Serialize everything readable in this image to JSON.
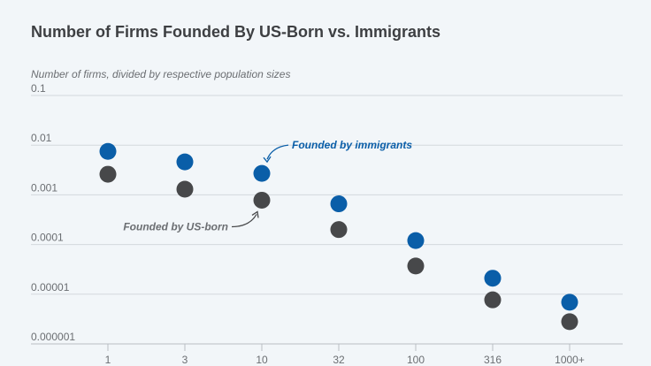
{
  "chart_data": {
    "type": "scatter",
    "title": "Number of Firms Founded By US-Born vs. Immigrants",
    "ylabel": "Number of firms, divided by respective population sizes",
    "xlabel": "",
    "y_scale": "log",
    "ylim": [
      1e-06,
      0.1
    ],
    "y_ticks": [
      "0.1",
      "0.01",
      "0.001",
      "0.0001",
      "0.00001",
      "0.000001"
    ],
    "y_tick_values": [
      0.1,
      0.01,
      0.001,
      0.0001,
      1e-05,
      1e-06
    ],
    "categories": [
      "1",
      "3",
      "10",
      "32",
      "100",
      "316",
      "1000+"
    ],
    "grid": true,
    "series": [
      {
        "name": "Founded by immigrants",
        "color": "#0a5ea8",
        "values": [
          0.0075,
          0.0046,
          0.0027,
          0.00066,
          0.00012,
          2.1e-05,
          6.9e-06
        ]
      },
      {
        "name": "Founded by US-born",
        "color": "#47484a",
        "values": [
          0.0026,
          0.0013,
          0.00078,
          0.0002,
          3.7e-05,
          7.7e-06,
          2.8e-06
        ]
      }
    ],
    "annotations": [
      {
        "text": "Founded by immigrants",
        "series": 0,
        "category": "10"
      },
      {
        "text": "Founded by US-born",
        "series": 1,
        "category": "10"
      }
    ]
  }
}
